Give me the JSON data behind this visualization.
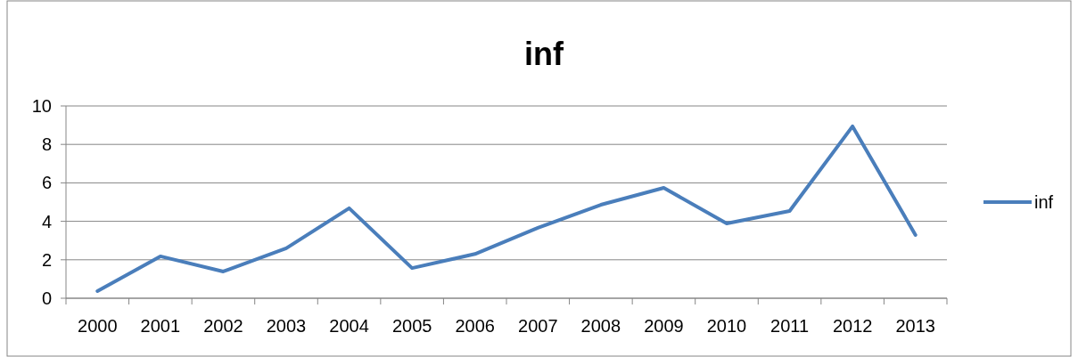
{
  "chart_data": {
    "type": "line",
    "title": "inf",
    "categories": [
      "2000",
      "2001",
      "2002",
      "2003",
      "2004",
      "2005",
      "2006",
      "2007",
      "2008",
      "2009",
      "2010",
      "2011",
      "2012",
      "2013"
    ],
    "series": [
      {
        "name": "inf",
        "color": "#4a7ebb",
        "values": [
          0.37,
          2.18,
          1.39,
          2.6,
          4.68,
          1.57,
          2.3,
          3.66,
          4.86,
          5.74,
          3.89,
          4.54,
          8.94,
          3.29
        ]
      }
    ],
    "ylim": [
      0,
      10
    ],
    "yticks": [
      0,
      2,
      4,
      6,
      8,
      10
    ],
    "grid": "y",
    "legend": "right",
    "marker": "none",
    "line_style": "solid"
  }
}
